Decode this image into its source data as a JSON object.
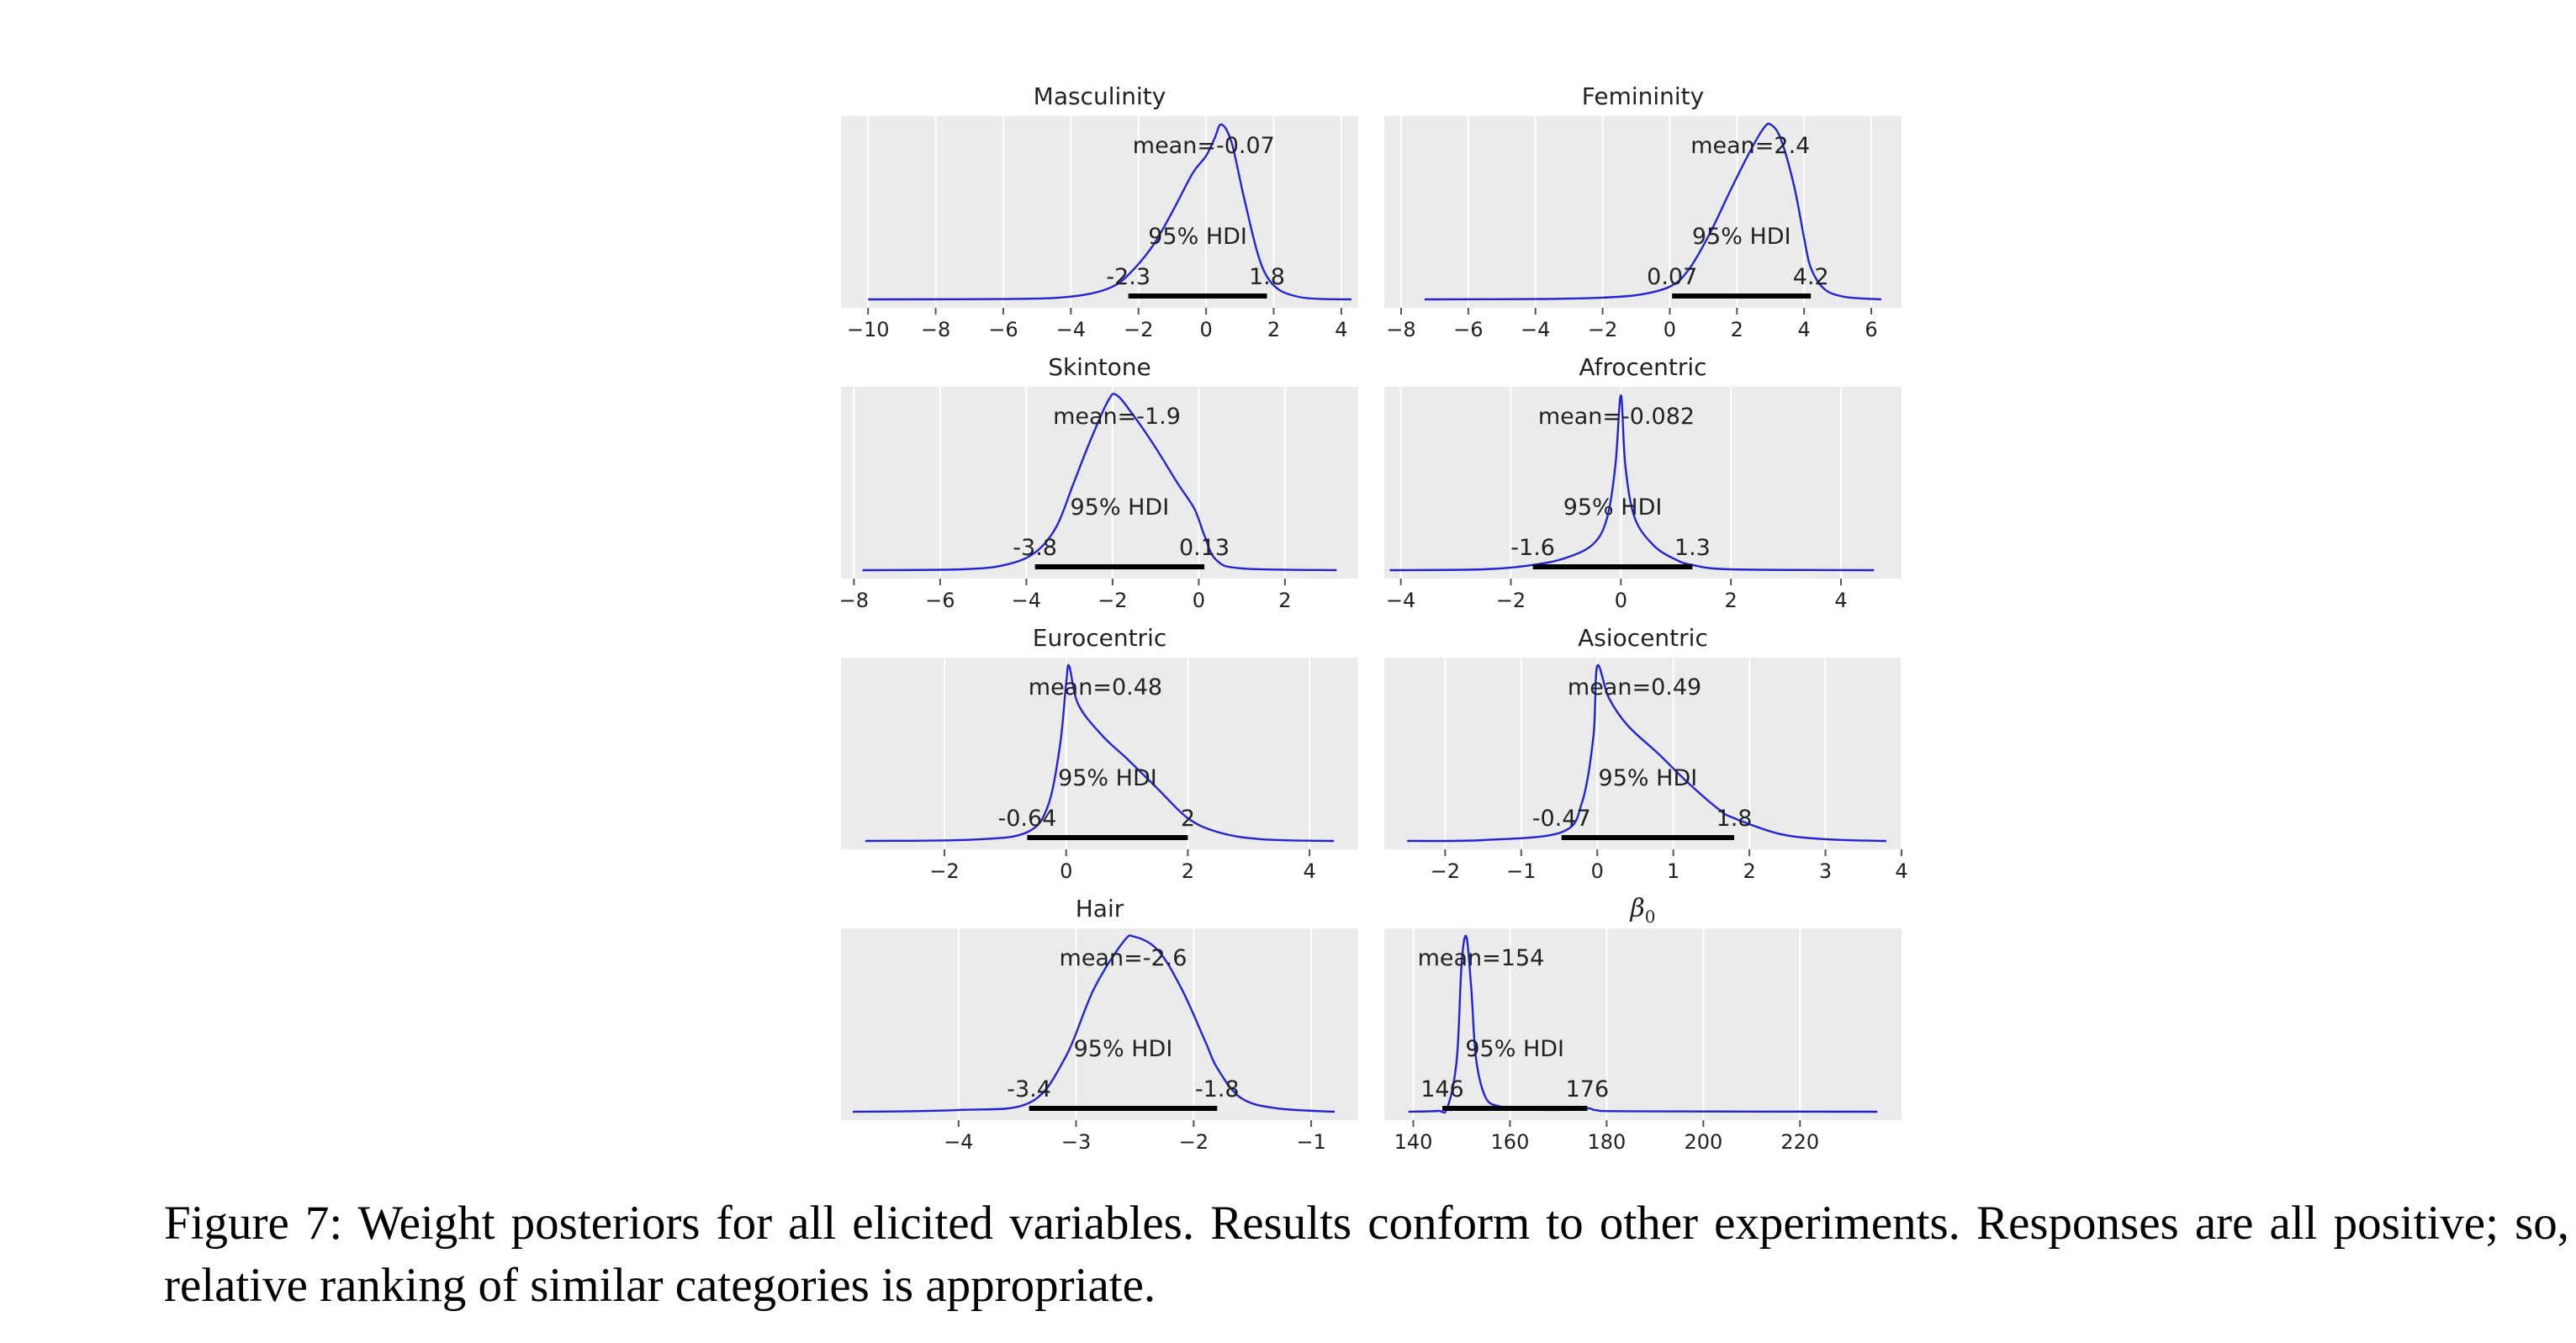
{
  "chart_data": [
    {
      "type": "area",
      "title": "Masculinity",
      "subscript": "",
      "xticks": [
        -10,
        -8,
        -6,
        -4,
        -2,
        0,
        2,
        4
      ],
      "xlim": [
        -10.8,
        4.5
      ],
      "density": [
        [
          -10,
          0
        ],
        [
          -6,
          0.002
        ],
        [
          -4.5,
          0.008
        ],
        [
          -3.5,
          0.03
        ],
        [
          -2.8,
          0.07
        ],
        [
          -2.3,
          0.14
        ],
        [
          -1.6,
          0.3
        ],
        [
          -1.0,
          0.5
        ],
        [
          -0.4,
          0.72
        ],
        [
          0,
          0.82
        ],
        [
          0.25,
          0.92
        ],
        [
          0.45,
          1.0
        ],
        [
          0.75,
          0.9
        ],
        [
          1.1,
          0.6
        ],
        [
          1.5,
          0.28
        ],
        [
          1.8,
          0.13
        ],
        [
          2.2,
          0.05
        ],
        [
          2.8,
          0.012
        ],
        [
          3.5,
          0.002
        ],
        [
          4.3,
          0
        ]
      ],
      "mean_label": "mean=-0.07",
      "mean": -0.07,
      "hdi_label": "95% HDI",
      "hdi": [
        -2.3,
        1.8
      ],
      "hdi_low_label": "-2.3",
      "hdi_high_label": "1.8"
    },
    {
      "type": "area",
      "title": "Femininity",
      "subscript": "",
      "xticks": [
        -8,
        -6,
        -4,
        -2,
        0,
        2,
        4,
        6
      ],
      "xlim": [
        -8.5,
        6.9
      ],
      "density": [
        [
          -7.3,
          0
        ],
        [
          -4,
          0.002
        ],
        [
          -2,
          0.01
        ],
        [
          -0.8,
          0.03
        ],
        [
          0.07,
          0.08
        ],
        [
          0.6,
          0.18
        ],
        [
          1.2,
          0.38
        ],
        [
          1.8,
          0.62
        ],
        [
          2.4,
          0.85
        ],
        [
          2.8,
          0.98
        ],
        [
          3.0,
          1.0
        ],
        [
          3.3,
          0.92
        ],
        [
          3.7,
          0.65
        ],
        [
          4.0,
          0.35
        ],
        [
          4.2,
          0.18
        ],
        [
          4.6,
          0.06
        ],
        [
          5.2,
          0.015
        ],
        [
          6.3,
          0
        ]
      ],
      "mean_label": "mean=2.4",
      "mean": 2.4,
      "hdi_label": "95% HDI",
      "hdi": [
        0.07,
        4.2
      ],
      "hdi_low_label": "0.07",
      "hdi_high_label": "4.2"
    },
    {
      "type": "area",
      "title": "Skintone",
      "subscript": "",
      "xticks": [
        -8,
        -6,
        -4,
        -2,
        0,
        2
      ],
      "xlim": [
        -8.3,
        3.7
      ],
      "density": [
        [
          -7.8,
          0
        ],
        [
          -5.5,
          0.005
        ],
        [
          -4.5,
          0.03
        ],
        [
          -3.8,
          0.1
        ],
        [
          -3.3,
          0.25
        ],
        [
          -2.9,
          0.5
        ],
        [
          -2.5,
          0.75
        ],
        [
          -2.1,
          0.97
        ],
        [
          -1.9,
          1.0
        ],
        [
          -1.5,
          0.88
        ],
        [
          -1.0,
          0.7
        ],
        [
          -0.5,
          0.5
        ],
        [
          -0.1,
          0.35
        ],
        [
          0.13,
          0.2
        ],
        [
          0.4,
          0.06
        ],
        [
          1.0,
          0.01
        ],
        [
          3.2,
          0
        ]
      ],
      "mean_label": "mean=-1.9",
      "mean": -1.9,
      "hdi_label": "95% HDI",
      "hdi": [
        -3.8,
        0.13
      ],
      "hdi_low_label": "-3.8",
      "hdi_high_label": "0.13"
    },
    {
      "type": "area",
      "title": "Afrocentric",
      "subscript": "",
      "xticks": [
        -4,
        -2,
        0,
        2,
        4
      ],
      "xlim": [
        -4.3,
        5.1
      ],
      "density": [
        [
          -4.2,
          0
        ],
        [
          -2.5,
          0.005
        ],
        [
          -1.6,
          0.03
        ],
        [
          -1.0,
          0.07
        ],
        [
          -0.5,
          0.15
        ],
        [
          -0.25,
          0.3
        ],
        [
          -0.1,
          0.6
        ],
        [
          0.0,
          1.0
        ],
        [
          0.08,
          0.6
        ],
        [
          0.25,
          0.3
        ],
        [
          0.6,
          0.14
        ],
        [
          1.0,
          0.06
        ],
        [
          1.3,
          0.03
        ],
        [
          2.0,
          0.005
        ],
        [
          4.6,
          0
        ]
      ],
      "mean_label": "mean=-0.082",
      "mean": -0.082,
      "hdi_label": "95% HDI",
      "hdi": [
        -1.6,
        1.3
      ],
      "hdi_low_label": "-1.6",
      "hdi_high_label": "1.3"
    },
    {
      "type": "area",
      "title": "Eurocentric",
      "subscript": "",
      "xticks": [
        -2,
        0,
        2,
        4
      ],
      "xlim": [
        -3.7,
        4.8
      ],
      "density": [
        [
          -3.3,
          0
        ],
        [
          -1.5,
          0.008
        ],
        [
          -0.64,
          0.05
        ],
        [
          -0.3,
          0.2
        ],
        [
          -0.1,
          0.55
        ],
        [
          0.0,
          0.9
        ],
        [
          0.05,
          1.0
        ],
        [
          0.2,
          0.78
        ],
        [
          0.6,
          0.6
        ],
        [
          1.0,
          0.47
        ],
        [
          1.5,
          0.3
        ],
        [
          2.0,
          0.13
        ],
        [
          2.5,
          0.05
        ],
        [
          3.2,
          0.01
        ],
        [
          4.4,
          0
        ]
      ],
      "mean_label": "mean=0.48",
      "mean": 0.48,
      "hdi_label": "95% HDI",
      "hdi": [
        -0.64,
        2.0
      ],
      "hdi_low_label": "-0.64",
      "hdi_high_label": "2"
    },
    {
      "type": "area",
      "title": "Asiocentric",
      "subscript": "",
      "xticks": [
        -2,
        -1,
        0,
        1,
        2,
        3,
        4
      ],
      "xlim": [
        -2.8,
        4.0
      ],
      "density": [
        [
          -2.5,
          0
        ],
        [
          -1.5,
          0.005
        ],
        [
          -0.47,
          0.05
        ],
        [
          -0.2,
          0.22
        ],
        [
          -0.05,
          0.6
        ],
        [
          0.0,
          1.0
        ],
        [
          0.15,
          0.82
        ],
        [
          0.4,
          0.66
        ],
        [
          0.8,
          0.5
        ],
        [
          1.2,
          0.33
        ],
        [
          1.6,
          0.18
        ],
        [
          1.8,
          0.13
        ],
        [
          2.4,
          0.04
        ],
        [
          3.0,
          0.01
        ],
        [
          3.8,
          0
        ]
      ],
      "mean_label": "mean=0.49",
      "mean": 0.49,
      "hdi_label": "95% HDI",
      "hdi": [
        -0.47,
        1.8
      ],
      "hdi_low_label": "-0.47",
      "hdi_high_label": "1.8"
    },
    {
      "type": "area",
      "title": "Hair",
      "subscript": "",
      "xticks": [
        -4,
        -3,
        -2,
        -1
      ],
      "xlim": [
        -5.0,
        -0.6
      ],
      "density": [
        [
          -4.9,
          0
        ],
        [
          -4.0,
          0.01
        ],
        [
          -3.4,
          0.05
        ],
        [
          -3.1,
          0.3
        ],
        [
          -2.85,
          0.7
        ],
        [
          -2.6,
          0.97
        ],
        [
          -2.5,
          1.0
        ],
        [
          -2.3,
          0.92
        ],
        [
          -2.1,
          0.7
        ],
        [
          -1.9,
          0.4
        ],
        [
          -1.8,
          0.25
        ],
        [
          -1.6,
          0.08
        ],
        [
          -1.3,
          0.02
        ],
        [
          -0.8,
          0
        ]
      ],
      "mean_label": "mean=-2.6",
      "mean": -2.6,
      "hdi_label": "95% HDI",
      "hdi": [
        -3.4,
        -1.8
      ],
      "hdi_low_label": "-3.4",
      "hdi_high_label": "-1.8"
    },
    {
      "type": "area",
      "title": "β",
      "subscript": "0",
      "xticks": [
        140,
        160,
        180,
        200,
        220
      ],
      "xlim": [
        134,
        241
      ],
      "density": [
        [
          139,
          0
        ],
        [
          145,
          0.005
        ],
        [
          147,
          0.02
        ],
        [
          149,
          0.3
        ],
        [
          150,
          0.85
        ],
        [
          151,
          1.0
        ],
        [
          152,
          0.7
        ],
        [
          153,
          0.3
        ],
        [
          155,
          0.08
        ],
        [
          158,
          0.03
        ],
        [
          163,
          0.015
        ],
        [
          170,
          0.01
        ],
        [
          176,
          0.02
        ],
        [
          178,
          0.008
        ],
        [
          185,
          0.003
        ],
        [
          236,
          0
        ]
      ],
      "mean_label": "mean=154",
      "mean": 154,
      "hdi_label": "95% HDI",
      "hdi": [
        146,
        176
      ],
      "hdi_low_label": "146",
      "hdi_high_label": "176"
    }
  ],
  "caption": "Figure 7: Weight posteriors for all elicited variables. Results conform to other experiments. Responses are all positive; so, relative ranking of similar categories is appropriate.",
  "colors": {
    "curve": "#2323d6",
    "hdi": "#000000",
    "panel_bg": "#ebebeb",
    "grid": "#ffffff"
  }
}
